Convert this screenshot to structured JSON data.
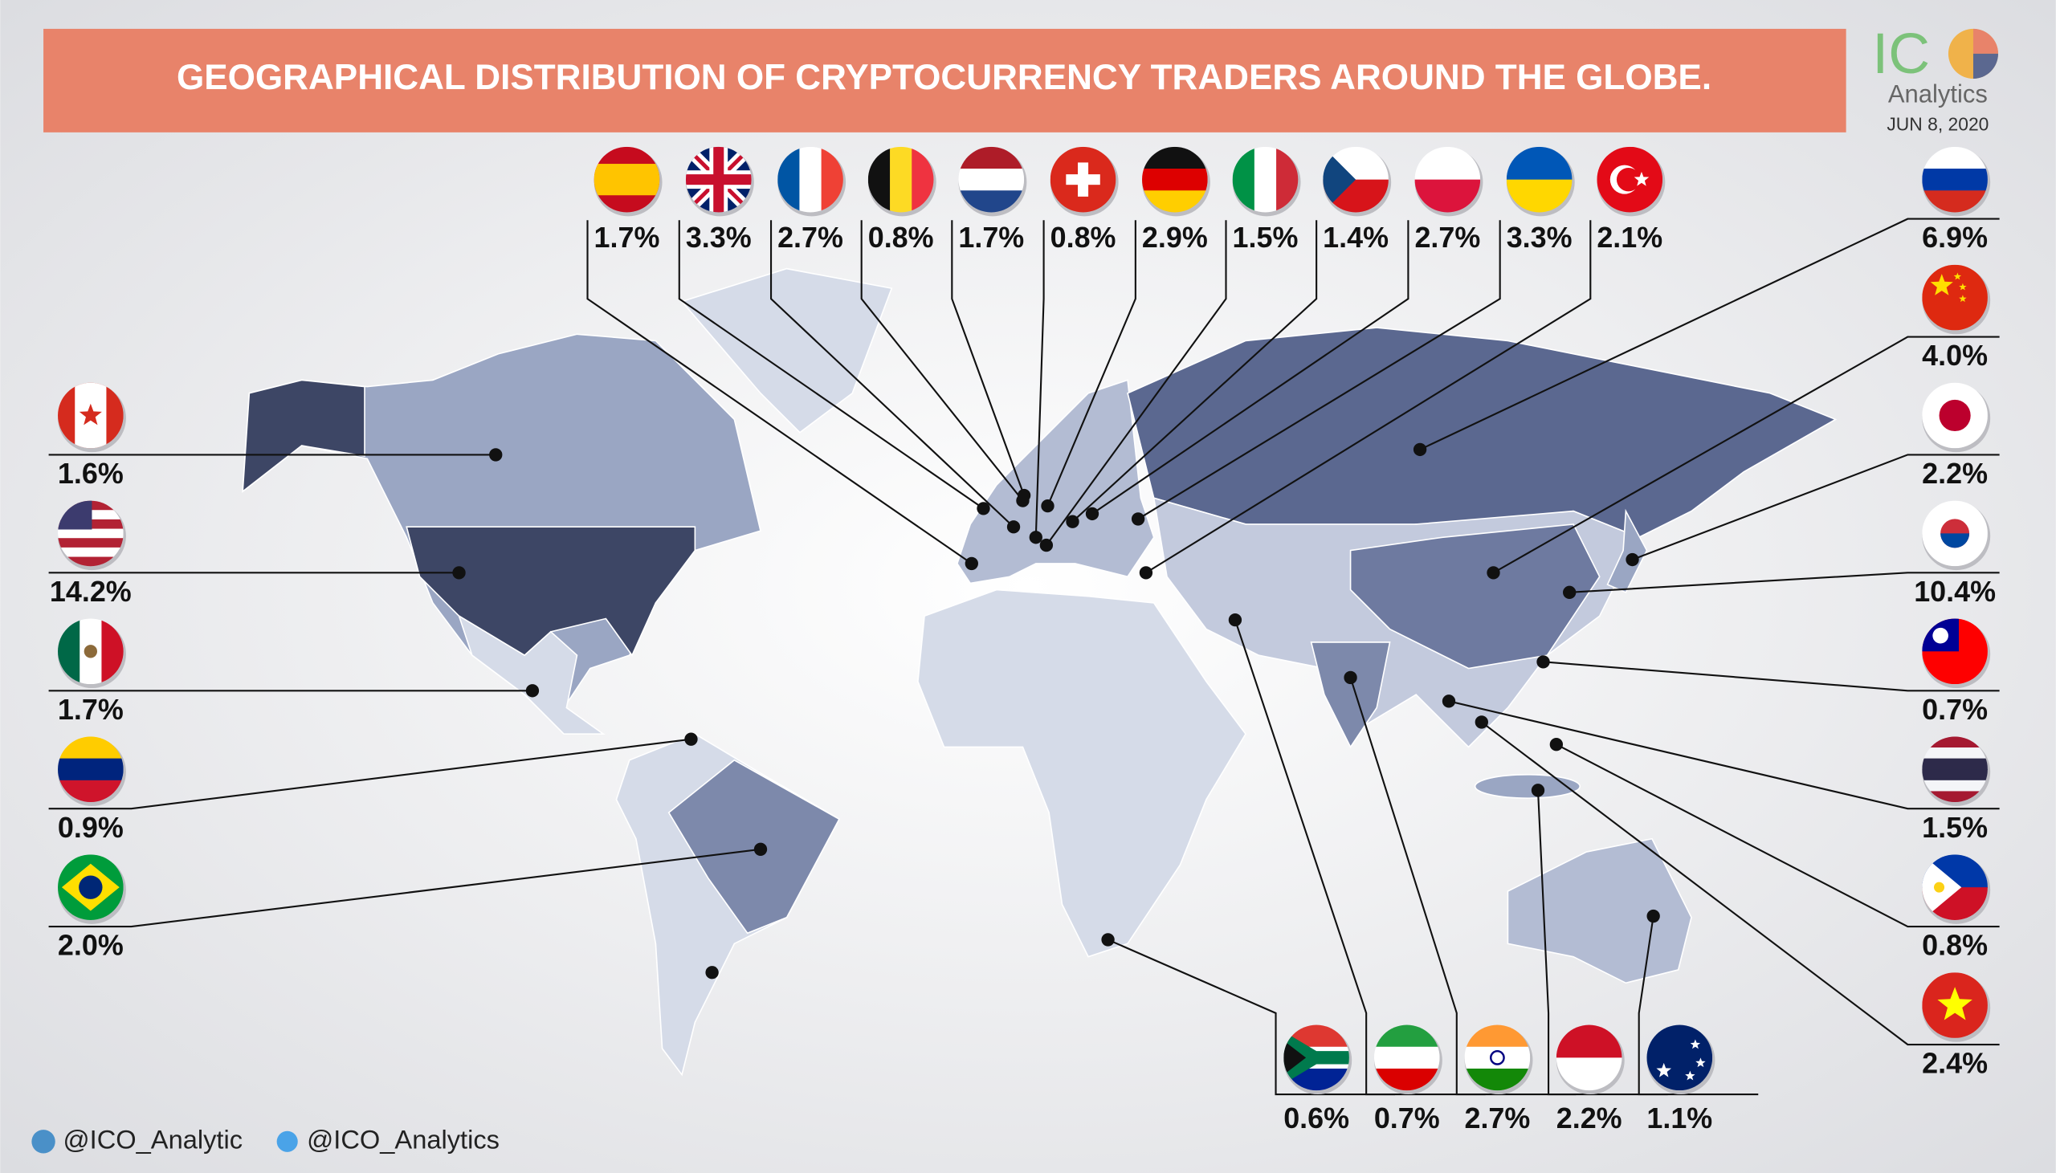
{
  "title": "GEOGRAPHICAL DISTRIBUTION OF CRYPTOCURRENCY TRADERS AROUND THE GLOBE.",
  "brand": {
    "name": "IC",
    "sub": "Analytics",
    "date": "JUN 8, 2020"
  },
  "markers": {
    "values": [
      1.7,
      3.3,
      2.7,
      0.8,
      1.7,
      0.8,
      2.9,
      1.5,
      1.4,
      2.7,
      3.3,
      2.1,
      6.9,
      4.0,
      2.2,
      10.4,
      0.7,
      1.5,
      0.8,
      2.4,
      1.6,
      14.2,
      1.7,
      0.9,
      2.0,
      0.6,
      0.7,
      2.7,
      2.2,
      1.1
    ],
    "value_labels": [
      "1.7%",
      "3.3%",
      "2.7%",
      "0.8%",
      "1.7%",
      "0.8%",
      "2.9%",
      "1.5%",
      "1.4%",
      "2.7%",
      "3.3%",
      "2.1%",
      "6.9%",
      "4.0%",
      "2.2%",
      "10.4%",
      "0.7%",
      "1.5%",
      "0.8%",
      "2.4%",
      "1.6%",
      "14.2%",
      "1.7%",
      "0.9%",
      "2.0%",
      "0.6%",
      "0.7%",
      "2.7%",
      "2.2%",
      "1.1%"
    ]
  },
  "footer": {
    "telegram": "@ICO_Analytic",
    "twitter": "@ICO_Analytics"
  }
}
